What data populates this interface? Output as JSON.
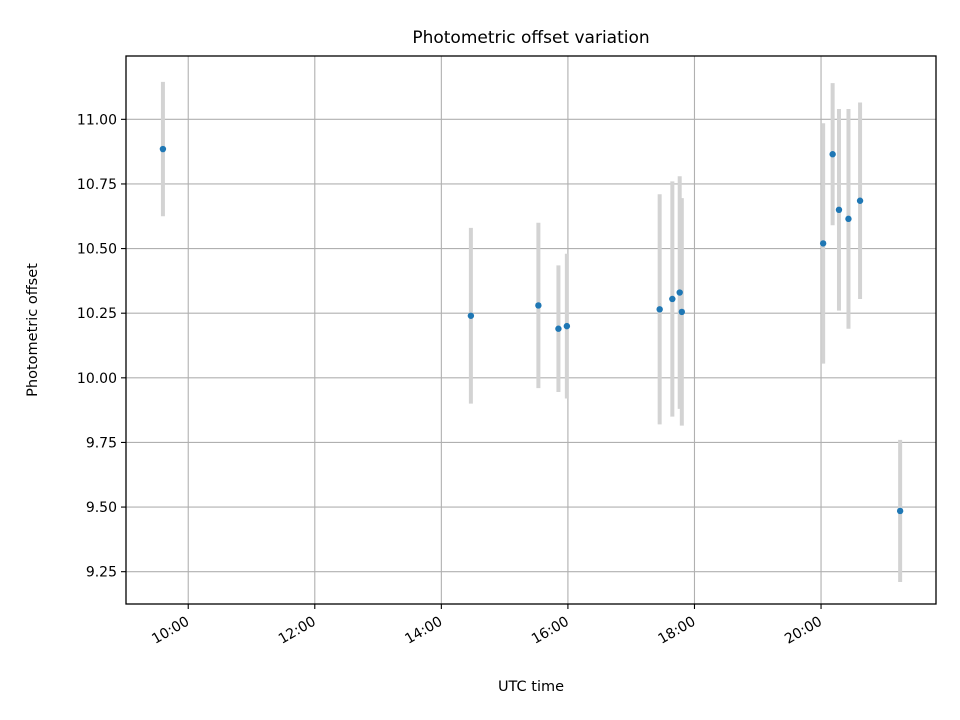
{
  "chart_data": {
    "type": "scatter",
    "title": "Photometric offset variation",
    "xlabel": "UTC time",
    "ylabel": "Photometric offset",
    "x_axis_kind": "time-of-day",
    "xlim": [
      "09:01",
      "21:49"
    ],
    "ylim": [
      9.125,
      11.245
    ],
    "grid": true,
    "legend": "none",
    "x_ticks": [
      "10:00",
      "12:00",
      "14:00",
      "16:00",
      "18:00",
      "20:00"
    ],
    "y_ticks": [
      "9.25",
      "9.50",
      "9.75",
      "10.00",
      "10.25",
      "10.50",
      "10.75",
      "11.00"
    ],
    "colors": {
      "marker": "#1f77b4",
      "errorbar": "#d3d3d3",
      "grid": "#b0b0b0"
    },
    "series": [
      {
        "points": [
          {
            "time": "09:36",
            "y": 10.885,
            "err": 0.26
          },
          {
            "time": "14:28",
            "y": 10.24,
            "err": 0.34
          },
          {
            "time": "15:32",
            "y": 10.28,
            "err": 0.32
          },
          {
            "time": "15:51",
            "y": 10.19,
            "err": 0.245
          },
          {
            "time": "15:59",
            "y": 10.2,
            "err": 0.28
          },
          {
            "time": "17:27",
            "y": 10.265,
            "err": 0.445
          },
          {
            "time": "17:39",
            "y": 10.305,
            "err": 0.455
          },
          {
            "time": "17:46",
            "y": 10.33,
            "err": 0.45
          },
          {
            "time": "17:48",
            "y": 10.255,
            "err": 0.44
          },
          {
            "time": "20:02",
            "y": 10.52,
            "err": 0.465
          },
          {
            "time": "20:11",
            "y": 10.865,
            "err": 0.275
          },
          {
            "time": "20:17",
            "y": 10.65,
            "err": 0.39
          },
          {
            "time": "20:26",
            "y": 10.615,
            "err": 0.425
          },
          {
            "time": "20:37",
            "y": 10.685,
            "err": 0.38
          },
          {
            "time": "21:15",
            "y": 9.485,
            "err": 0.275
          }
        ]
      }
    ]
  }
}
